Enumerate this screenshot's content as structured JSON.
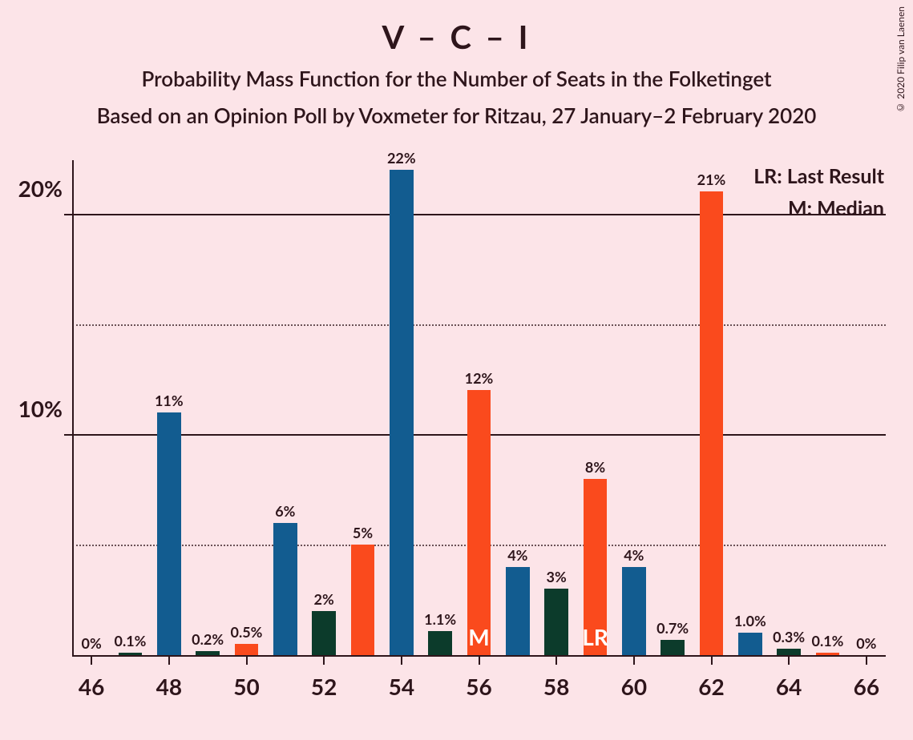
{
  "title": "V – C – I",
  "subtitle1": "Probability Mass Function for the Number of Seats in the Folketinget",
  "subtitle2": "Based on an Opinion Poll by Voxmeter for Ritzau, 27 January–2 February 2020",
  "copyright": "© 2020 Filip van Laenen",
  "legend": {
    "lr": "LR: Last Result",
    "m": "M: Median"
  },
  "chart": {
    "type": "bar",
    "background_color": "#fce4e8",
    "text_color": "#2e151b",
    "colors": {
      "blue": "#125c90",
      "orange": "#fa4a1d",
      "green": "#0c3b2b"
    },
    "y_axis": {
      "min": 0,
      "max": 22.5,
      "major_ticks": [
        10,
        20
      ],
      "minor_ticks": [
        5,
        15
      ],
      "tick_labels": [
        "10%",
        "20%"
      ]
    },
    "x_axis": {
      "min": 45.5,
      "max": 66.5,
      "ticks": [
        46,
        48,
        50,
        52,
        54,
        56,
        58,
        60,
        62,
        64,
        66
      ],
      "tick_labels": [
        "46",
        "48",
        "50",
        "52",
        "54",
        "56",
        "58",
        "60",
        "62",
        "64",
        "66"
      ]
    },
    "bar_width_units": 0.62,
    "bars": [
      {
        "x": 46,
        "value": 0,
        "label": "0%",
        "color": "orange"
      },
      {
        "x": 47,
        "value": 0.1,
        "label": "0.1%",
        "color": "green"
      },
      {
        "x": 48,
        "value": 11,
        "label": "11%",
        "color": "blue"
      },
      {
        "x": 49,
        "value": 0.2,
        "label": "0.2%",
        "color": "green"
      },
      {
        "x": 50,
        "value": 0.5,
        "label": "0.5%",
        "color": "orange"
      },
      {
        "x": 51,
        "value": 6,
        "label": "6%",
        "color": "blue"
      },
      {
        "x": 52,
        "value": 2,
        "label": "2%",
        "color": "green"
      },
      {
        "x": 53,
        "value": 5,
        "label": "5%",
        "color": "orange"
      },
      {
        "x": 54,
        "value": 22,
        "label": "22%",
        "color": "blue"
      },
      {
        "x": 55,
        "value": 1.1,
        "label": "1.1%",
        "color": "green"
      },
      {
        "x": 56,
        "value": 12,
        "label": "12%",
        "color": "orange",
        "marker": "M"
      },
      {
        "x": 57,
        "value": 4,
        "label": "4%",
        "color": "blue"
      },
      {
        "x": 58,
        "value": 3,
        "label": "3%",
        "color": "green"
      },
      {
        "x": 59,
        "value": 8,
        "label": "8%",
        "color": "orange",
        "marker": "LR"
      },
      {
        "x": 60,
        "value": 4,
        "label": "4%",
        "color": "blue"
      },
      {
        "x": 61,
        "value": 0.7,
        "label": "0.7%",
        "color": "green"
      },
      {
        "x": 62,
        "value": 21,
        "label": "21%",
        "color": "orange"
      },
      {
        "x": 63,
        "value": 1.0,
        "label": "1.0%",
        "color": "blue"
      },
      {
        "x": 64,
        "value": 0.3,
        "label": "0.3%",
        "color": "green"
      },
      {
        "x": 65,
        "value": 0.1,
        "label": "0.1%",
        "color": "orange"
      },
      {
        "x": 66,
        "value": 0,
        "label": "0%",
        "color": "blue"
      }
    ]
  }
}
